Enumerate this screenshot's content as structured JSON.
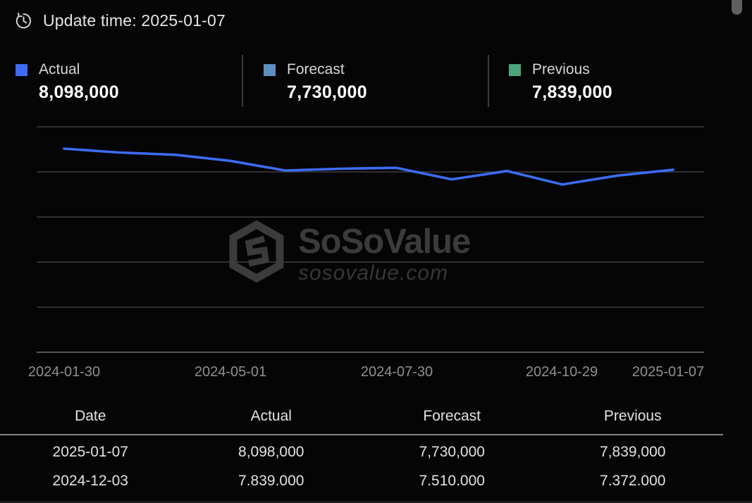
{
  "header": {
    "update_time_text": "Update time: 2025-01-07"
  },
  "summary": {
    "items": [
      {
        "label": "Actual",
        "value": "8,098,000",
        "color": "#3D6BF3"
      },
      {
        "label": "Forecast",
        "value": "7,730,000",
        "color": "#5F8FC0"
      },
      {
        "label": "Previous",
        "value": "7,839,000",
        "color": "#4BA47A"
      }
    ]
  },
  "chart_data": {
    "type": "line",
    "title": "",
    "x_tick_labels": [
      "2024-01-30",
      "2024-05-01",
      "2024-07-30",
      "2024-10-29",
      "2025-01-07"
    ],
    "tick_point_indices": [
      0,
      3,
      6,
      9,
      11
    ],
    "num_points": 12,
    "series": [
      {
        "name": "Actual",
        "color": "#3D6BF3",
        "values_estimated": [
          9030000,
          8860000,
          8760000,
          8490000,
          8060000,
          8140000,
          8180000,
          7670000,
          8040000,
          7440000,
          7839000,
          8098000
        ]
      }
    ],
    "ylim": [
      0,
      10000000
    ],
    "y_gridline_step": 2000000,
    "grid": true,
    "legend_position": "top",
    "watermark_brand": "SoSoValue",
    "watermark_domain": "sosovalue.com"
  },
  "table": {
    "columns": [
      "Date",
      "Actual",
      "Forecast",
      "Previous"
    ],
    "rows": [
      [
        "2025-01-07",
        "8,098,000",
        "7,730,000",
        "7,839,000"
      ],
      [
        "2024-12-03",
        "7.839.000",
        "7.510.000",
        "7.372.000"
      ]
    ]
  },
  "colors": {
    "background": "#050505",
    "actual_blue": "#3D6BF3",
    "forecast_blue": "#5F8FC0",
    "previous_green": "#4BA47A",
    "gridline": "#3e3e3e",
    "axis_line": "#6e6e6e",
    "tick_label": "#8f8f8f",
    "watermark": "#3b3b3b",
    "table_separator": "#848484",
    "scrollbar_thumb": "#5f5f5f"
  }
}
